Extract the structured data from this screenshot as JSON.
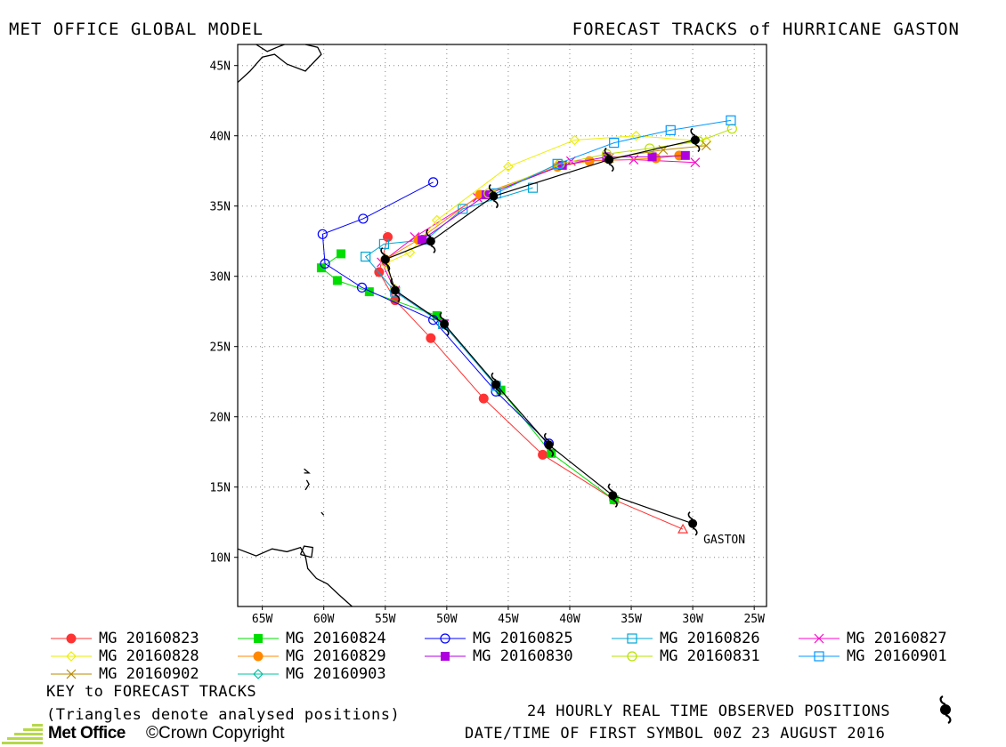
{
  "header": {
    "left_title": "MET OFFICE GLOBAL MODEL",
    "right_title": "FORECAST TRACKS of HURRICANE GASTON"
  },
  "map": {
    "lon_range": [
      -67,
      -24
    ],
    "lat_range": [
      6.5,
      46.5
    ],
    "lat_ticks": [
      {
        "value": 45,
        "label": "45N"
      },
      {
        "value": 40,
        "label": "40N"
      },
      {
        "value": 35,
        "label": "35N"
      },
      {
        "value": 30,
        "label": "30N"
      },
      {
        "value": 25,
        "label": "25N"
      },
      {
        "value": 20,
        "label": "20N"
      },
      {
        "value": 15,
        "label": "15N"
      },
      {
        "value": 10,
        "label": "10N"
      }
    ],
    "lon_ticks": [
      {
        "value": -65,
        "label": "65W"
      },
      {
        "value": -60,
        "label": "60W"
      },
      {
        "value": -55,
        "label": "55W"
      },
      {
        "value": -50,
        "label": "50W"
      },
      {
        "value": -45,
        "label": "45W"
      },
      {
        "value": -40,
        "label": "40W"
      },
      {
        "value": -35,
        "label": "35W"
      },
      {
        "value": -30,
        "label": "30W"
      },
      {
        "value": -25,
        "label": "25W"
      }
    ],
    "storm_label": "GASTON"
  },
  "observed_track": {
    "color": "#000000",
    "points": [
      {
        "lon": -30.0,
        "lat": 12.4
      },
      {
        "lon": -36.5,
        "lat": 14.4
      },
      {
        "lon": -41.7,
        "lat": 18.0
      },
      {
        "lon": -46.0,
        "lat": 22.3
      },
      {
        "lon": -50.2,
        "lat": 26.6
      },
      {
        "lon": -54.2,
        "lat": 29.0
      },
      {
        "lon": -55.0,
        "lat": 31.2
      },
      {
        "lon": -51.3,
        "lat": 32.5
      },
      {
        "lon": -46.2,
        "lat": 35.7
      },
      {
        "lon": -36.8,
        "lat": 38.3
      },
      {
        "lon": -29.8,
        "lat": 39.7
      }
    ]
  },
  "chart_data": {
    "type": "scatter",
    "title": "FORECAST TRACKS of HURRICANE GASTON",
    "xlabel": "",
    "ylabel": "",
    "xlim": [
      -67,
      -24
    ],
    "ylim": [
      6.5,
      46.5
    ],
    "series": [
      {
        "name": "MG 20160823",
        "color": "#ff3333",
        "marker": "circle-filled",
        "points": [
          [
            -30.8,
            12.0
          ],
          [
            -36.4,
            14.1
          ],
          [
            -42.2,
            17.3
          ],
          [
            -47.0,
            21.3
          ],
          [
            -51.3,
            25.6
          ],
          [
            -54.2,
            28.3
          ],
          [
            -55.5,
            30.3
          ],
          [
            -54.8,
            32.8
          ]
        ]
      },
      {
        "name": "MG 20160824",
        "color": "#00dd00",
        "marker": "square-filled",
        "points": [
          [
            -36.4,
            14.1
          ],
          [
            -41.5,
            17.4
          ],
          [
            -45.6,
            21.9
          ],
          [
            -50.8,
            27.2
          ],
          [
            -56.3,
            28.9
          ],
          [
            -58.9,
            29.7
          ],
          [
            -60.2,
            30.6
          ],
          [
            -58.6,
            31.6
          ]
        ]
      },
      {
        "name": "MG 20160825",
        "color": "#0000ff",
        "marker": "circle-open",
        "points": [
          [
            -41.7,
            18.1
          ],
          [
            -46.0,
            21.8
          ],
          [
            -51.1,
            26.9
          ],
          [
            -56.9,
            29.2
          ],
          [
            -59.9,
            30.9
          ],
          [
            -60.1,
            33.0
          ],
          [
            -56.8,
            34.1
          ],
          [
            -51.1,
            36.7
          ]
        ]
      },
      {
        "name": "MG 20160826",
        "color": "#00a6d6",
        "marker": "square-open",
        "points": [
          [
            -46.0,
            22.2
          ],
          [
            -50.3,
            26.6
          ],
          [
            -54.2,
            28.9
          ],
          [
            -56.6,
            31.4
          ],
          [
            -55.1,
            32.3
          ],
          [
            -51.7,
            32.6
          ],
          [
            -48.7,
            34.8
          ],
          [
            -43.0,
            36.3
          ]
        ]
      },
      {
        "name": "MG 20160827",
        "color": "#ff00cc",
        "marker": "x",
        "points": [
          [
            -50.2,
            26.6
          ],
          [
            -54.2,
            29.0
          ],
          [
            -55.3,
            31.0
          ],
          [
            -52.6,
            32.8
          ],
          [
            -47.5,
            35.6
          ],
          [
            -39.9,
            38.2
          ],
          [
            -34.8,
            38.3
          ],
          [
            -29.8,
            38.1
          ]
        ]
      },
      {
        "name": "MG 20160828",
        "color": "#eeee00",
        "marker": "diamond",
        "points": [
          [
            -54.2,
            29.1
          ],
          [
            -55.0,
            30.9
          ],
          [
            -53.0,
            31.7
          ],
          [
            -50.8,
            34.0
          ],
          [
            -45.0,
            37.8
          ],
          [
            -39.6,
            39.7
          ],
          [
            -34.6,
            40.0
          ],
          [
            -28.9,
            39.6
          ]
        ]
      },
      {
        "name": "MG 20160829",
        "color": "#ff8800",
        "marker": "circle-filled",
        "points": [
          [
            -55.0,
            31.2
          ],
          [
            -52.3,
            32.6
          ],
          [
            -47.3,
            35.8
          ],
          [
            -41.0,
            37.8
          ],
          [
            -38.4,
            38.2
          ],
          [
            -33.0,
            38.4
          ],
          [
            -31.1,
            38.6
          ]
        ]
      },
      {
        "name": "MG 20160830",
        "color": "#b000e0",
        "marker": "square-filled",
        "points": [
          [
            -52.0,
            32.6
          ],
          [
            -46.8,
            35.8
          ],
          [
            -40.6,
            37.9
          ],
          [
            -37.0,
            38.5
          ],
          [
            -33.3,
            38.5
          ],
          [
            -30.6,
            38.6
          ]
        ]
      },
      {
        "name": "MG 20160831",
        "color": "#b8e000",
        "marker": "circle-open",
        "points": [
          [
            -46.6,
            35.9
          ],
          [
            -40.8,
            38.0
          ],
          [
            -37.0,
            38.7
          ],
          [
            -33.5,
            39.1
          ],
          [
            -29.5,
            39.6
          ],
          [
            -26.8,
            40.5
          ]
        ]
      },
      {
        "name": "MG 20160901",
        "color": "#0098ff",
        "marker": "square-open",
        "points": [
          [
            -46.0,
            35.9
          ],
          [
            -41.0,
            38.0
          ],
          [
            -36.4,
            39.5
          ],
          [
            -31.8,
            40.4
          ],
          [
            -26.9,
            41.1
          ]
        ]
      },
      {
        "name": "MG 20160902",
        "color": "#b88a00",
        "marker": "x",
        "points": [
          [
            -36.8,
            38.4
          ],
          [
            -32.4,
            39.0
          ],
          [
            -28.9,
            39.3
          ]
        ]
      },
      {
        "name": "MG 20160903",
        "color": "#00c0a0",
        "marker": "diamond",
        "points": [
          [
            -29.8,
            39.7
          ]
        ]
      }
    ]
  },
  "legend_key": "KEY to FORECAST TRACKS",
  "notes": {
    "triangles": "(Triangles denote analysed positions)",
    "observed": "24 HOURLY REAL TIME OBSERVED POSITIONS",
    "first_symbol": "DATE/TIME OF FIRST SYMBOL 00Z 23 AUGUST 2016"
  },
  "logo": {
    "name": "Met Office",
    "copyright": "©Crown Copyright",
    "color": "#b6d84a"
  }
}
